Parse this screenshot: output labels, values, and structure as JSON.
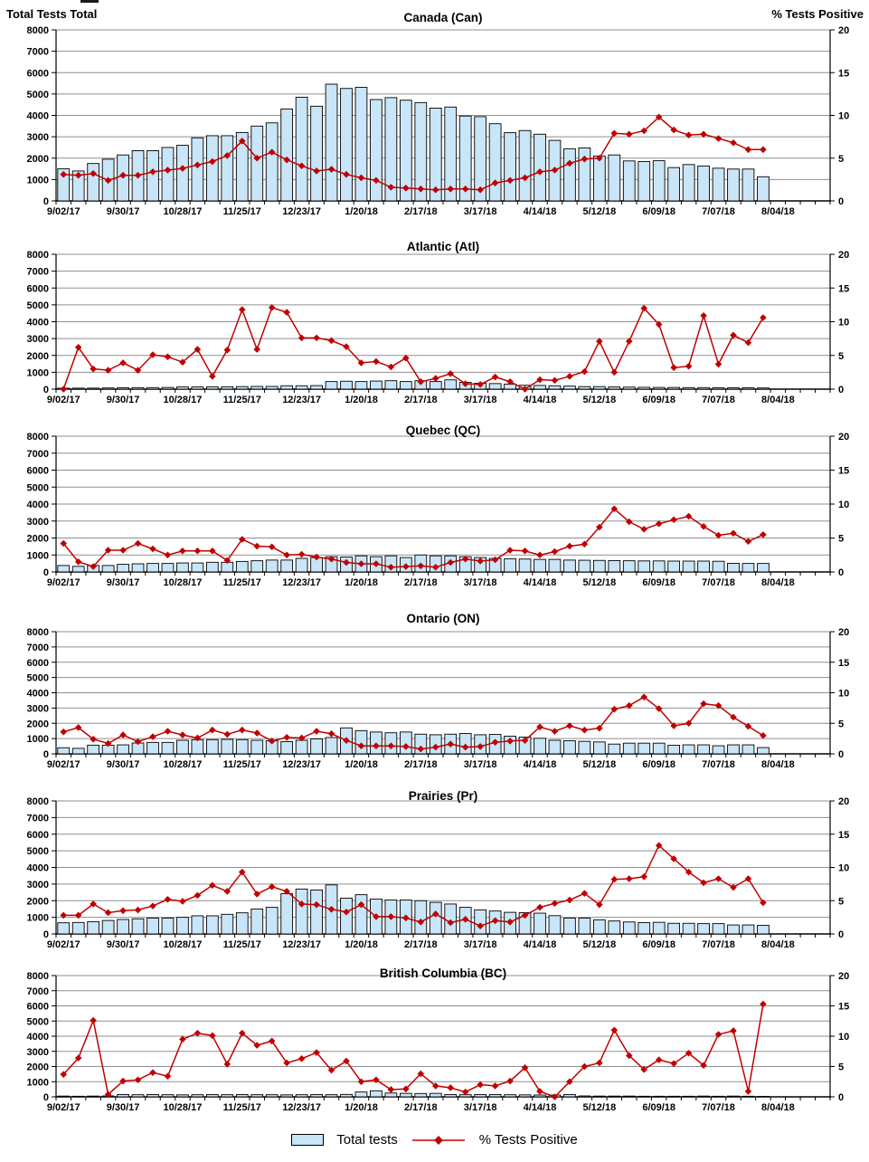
{
  "page": {
    "header_left": "Total Tests Total",
    "header_right": "% Tests Positive"
  },
  "legend": {
    "bar_label": "Total tests",
    "line_label": "% Tests Positive"
  },
  "colors": {
    "bar_fill": "#C9E5F8",
    "bar_stroke": "#000000",
    "line_color": "#C00000",
    "grid_color": "#8F8F8F",
    "axis_color": "#000000"
  },
  "axes": {
    "left_axis_ticks": [
      "8000",
      "7000",
      "6000",
      "5000",
      "4000",
      "3000",
      "2000",
      "1000",
      "0"
    ],
    "right_axis_ticks": [
      "20",
      "15",
      "10",
      "5",
      "0"
    ],
    "x_tick_labels": [
      "9/02/17",
      "9/30/17",
      "10/28/17",
      "11/25/17",
      "12/23/17",
      "1/20/18",
      "2/17/18",
      "3/17/18",
      "4/14/18",
      "5/12/18",
      "6/09/18",
      "7/07/18",
      "8/04/18"
    ],
    "left_axis_max": 8000,
    "right_axis_max": 20,
    "n_points": 48,
    "n_slots": 52,
    "grid": "on",
    "legend_position": "bottom"
  },
  "chart_data": [
    {
      "type": "bar",
      "combo": "bar+line",
      "region_code": "Can",
      "title": "Canada (Can)",
      "ylim_left": [
        0,
        8000
      ],
      "ylim_right": [
        0,
        20
      ],
      "series": [
        {
          "name": "Total tests",
          "axis": "left",
          "values": [
            1500,
            1400,
            1750,
            1950,
            2150,
            2350,
            2350,
            2500,
            2600,
            2950,
            3050,
            3050,
            3200,
            3500,
            3650,
            4300,
            4850,
            4430,
            5460,
            5260,
            5310,
            4740,
            4830,
            4710,
            4600,
            4340,
            4390,
            3970,
            3940,
            3610,
            3190,
            3290,
            3120,
            2830,
            2440,
            2480,
            2100,
            2150,
            1870,
            1840,
            1880,
            1560,
            1700,
            1630,
            1530,
            1490,
            1490,
            1130
          ]
        },
        {
          "name": "% Tests Positive",
          "axis": "right",
          "values": [
            3.1,
            3.0,
            3.2,
            2.4,
            3.0,
            3.0,
            3.4,
            3.6,
            3.8,
            4.2,
            4.6,
            5.3,
            7.0,
            5.0,
            5.7,
            4.8,
            4.1,
            3.5,
            3.7,
            3.1,
            2.7,
            2.4,
            1.6,
            1.5,
            1.4,
            1.3,
            1.4,
            1.4,
            1.3,
            2.1,
            2.4,
            2.7,
            3.4,
            3.6,
            4.4,
            4.9,
            5.0,
            7.9,
            7.8,
            8.2,
            9.8,
            8.3,
            7.7,
            7.8,
            7.3,
            6.8,
            6.0,
            6.0
          ]
        }
      ]
    },
    {
      "type": "bar",
      "combo": "bar+line",
      "region_code": "Atl",
      "title": "Atlantic (Atl)",
      "ylim_left": [
        0,
        8000
      ],
      "ylim_right": [
        0,
        20
      ],
      "series": [
        {
          "name": "Total tests",
          "axis": "left",
          "values": [
            60,
            60,
            60,
            70,
            80,
            90,
            90,
            100,
            130,
            130,
            140,
            140,
            150,
            160,
            160,
            200,
            200,
            210,
            450,
            470,
            450,
            480,
            500,
            450,
            500,
            450,
            550,
            400,
            350,
            330,
            300,
            230,
            220,
            200,
            180,
            150,
            150,
            130,
            120,
            110,
            100,
            100,
            90,
            90,
            80,
            80,
            80,
            70
          ]
        },
        {
          "name": "% Tests Positive",
          "axis": "right",
          "values": [
            0.0,
            6.2,
            3.0,
            2.8,
            3.9,
            2.8,
            5.1,
            4.8,
            4.0,
            5.9,
            1.9,
            5.8,
            11.8,
            5.9,
            12.1,
            11.4,
            7.6,
            7.6,
            7.2,
            6.3,
            3.9,
            4.1,
            3.3,
            4.6,
            1.1,
            1.6,
            2.3,
            0.8,
            0.7,
            1.8,
            1.1,
            0.0,
            1.4,
            1.3,
            1.9,
            2.6,
            7.1,
            2.5,
            7.1,
            12.0,
            9.6,
            3.2,
            3.4,
            10.9,
            3.7,
            8.0,
            6.9,
            10.6
          ]
        }
      ]
    },
    {
      "type": "bar",
      "combo": "bar+line",
      "region_code": "QC",
      "title": "Quebec (QC)",
      "ylim_left": [
        0,
        8000
      ],
      "ylim_right": [
        0,
        20
      ],
      "series": [
        {
          "name": "Total tests",
          "axis": "left",
          "values": [
            380,
            330,
            380,
            380,
            450,
            480,
            500,
            500,
            530,
            530,
            570,
            570,
            620,
            660,
            700,
            700,
            800,
            850,
            900,
            880,
            950,
            900,
            950,
            850,
            1000,
            950,
            950,
            900,
            850,
            800,
            780,
            760,
            740,
            740,
            700,
            690,
            680,
            670,
            660,
            650,
            650,
            640,
            640,
            640,
            630,
            510,
            500,
            500
          ]
        },
        {
          "name": "% Tests Positive",
          "axis": "right",
          "values": [
            4.2,
            1.5,
            0.8,
            3.2,
            3.2,
            4.2,
            3.4,
            2.5,
            3.1,
            3.1,
            3.1,
            1.7,
            4.8,
            3.8,
            3.7,
            2.5,
            2.6,
            2.2,
            1.9,
            1.4,
            1.2,
            1.2,
            0.7,
            0.8,
            0.9,
            0.7,
            1.4,
            1.9,
            1.6,
            1.8,
            3.2,
            3.1,
            2.5,
            3.0,
            3.8,
            4.1,
            6.6,
            9.3,
            7.4,
            6.3,
            7.1,
            7.7,
            8.2,
            6.7,
            5.4,
            5.7,
            4.5,
            5.5
          ]
        }
      ]
    },
    {
      "type": "bar",
      "combo": "bar+line",
      "region_code": "ON",
      "title": "Ontario (ON)",
      "ylim_left": [
        0,
        8000
      ],
      "ylim_right": [
        0,
        20
      ],
      "series": [
        {
          "name": "Total tests",
          "axis": "left",
          "values": [
            400,
            360,
            570,
            570,
            590,
            710,
            750,
            750,
            890,
            930,
            930,
            950,
            930,
            890,
            860,
            800,
            890,
            980,
            1070,
            1700,
            1520,
            1430,
            1380,
            1430,
            1290,
            1250,
            1290,
            1330,
            1250,
            1270,
            1160,
            1100,
            1020,
            890,
            860,
            820,
            780,
            640,
            700,
            700,
            700,
            560,
            590,
            590,
            530,
            590,
            590,
            410
          ]
        },
        {
          "name": "% Tests Positive",
          "axis": "right",
          "values": [
            3.6,
            4.3,
            2.4,
            1.7,
            3.1,
            2.0,
            2.8,
            3.7,
            3.1,
            2.6,
            3.9,
            3.2,
            3.9,
            3.4,
            2.1,
            2.7,
            2.6,
            3.7,
            3.3,
            2.2,
            1.3,
            1.3,
            1.3,
            1.2,
            0.8,
            1.1,
            1.6,
            1.1,
            1.2,
            1.9,
            2.1,
            2.2,
            4.4,
            3.7,
            4.6,
            3.9,
            4.2,
            7.3,
            7.9,
            9.3,
            7.4,
            4.6,
            5.0,
            8.2,
            7.9,
            6.0,
            4.5,
            3.0
          ]
        }
      ]
    },
    {
      "type": "bar",
      "combo": "bar+line",
      "region_code": "Pr",
      "title": "Prairies (Pr)",
      "ylim_left": [
        0,
        8000
      ],
      "ylim_right": [
        0,
        20
      ],
      "series": [
        {
          "name": "Total tests",
          "axis": "left",
          "values": [
            670,
            690,
            740,
            810,
            870,
            910,
            950,
            950,
            1000,
            1090,
            1090,
            1180,
            1270,
            1500,
            1600,
            2420,
            2700,
            2640,
            2950,
            2150,
            2360,
            2100,
            2040,
            2040,
            2000,
            1900,
            1800,
            1600,
            1450,
            1380,
            1300,
            1280,
            1250,
            1100,
            950,
            950,
            850,
            780,
            720,
            680,
            700,
            640,
            640,
            620,
            620,
            540,
            540,
            520
          ]
        },
        {
          "name": "% Tests Positive",
          "axis": "right",
          "values": [
            2.8,
            2.8,
            4.5,
            3.2,
            3.5,
            3.6,
            4.2,
            5.2,
            4.9,
            5.8,
            7.3,
            6.4,
            9.3,
            6.0,
            7.1,
            6.4,
            4.5,
            4.4,
            3.7,
            3.3,
            4.4,
            2.6,
            2.6,
            2.4,
            1.8,
            3.0,
            1.7,
            2.2,
            1.2,
            2.0,
            1.8,
            2.8,
            4.0,
            4.6,
            5.1,
            6.1,
            4.4,
            8.2,
            8.3,
            8.6,
            13.3,
            11.3,
            9.3,
            7.7,
            8.3,
            7.0,
            8.3,
            4.7
          ]
        }
      ]
    },
    {
      "type": "bar",
      "combo": "bar+line",
      "region_code": "BC",
      "title": "British Columbia (BC)",
      "ylim_left": [
        0,
        8000
      ],
      "ylim_right": [
        0,
        20
      ],
      "series": [
        {
          "name": "Total tests",
          "axis": "left",
          "values": [
            50,
            40,
            50,
            60,
            150,
            140,
            150,
            140,
            130,
            140,
            150,
            140,
            150,
            140,
            140,
            130,
            140,
            150,
            140,
            160,
            320,
            400,
            250,
            230,
            220,
            230,
            150,
            140,
            150,
            150,
            140,
            130,
            120,
            120,
            150,
            60,
            50,
            50,
            50,
            40,
            40,
            40,
            40,
            50,
            40,
            50,
            40,
            30
          ]
        },
        {
          "name": "% Tests Positive",
          "axis": "right",
          "values": [
            3.7,
            6.4,
            12.6,
            0.4,
            2.6,
            2.8,
            4.0,
            3.4,
            9.5,
            10.5,
            10.1,
            5.4,
            10.5,
            8.5,
            9.2,
            5.6,
            6.3,
            7.3,
            4.4,
            5.9,
            2.5,
            2.8,
            1.2,
            1.3,
            3.8,
            1.8,
            1.5,
            0.8,
            2.0,
            1.8,
            2.6,
            4.8,
            0.9,
            0.0,
            2.5,
            5.0,
            5.6,
            11.0,
            6.8,
            4.5,
            6.1,
            5.5,
            7.2,
            5.2,
            10.3,
            10.9,
            0.9,
            15.3
          ]
        }
      ]
    }
  ]
}
